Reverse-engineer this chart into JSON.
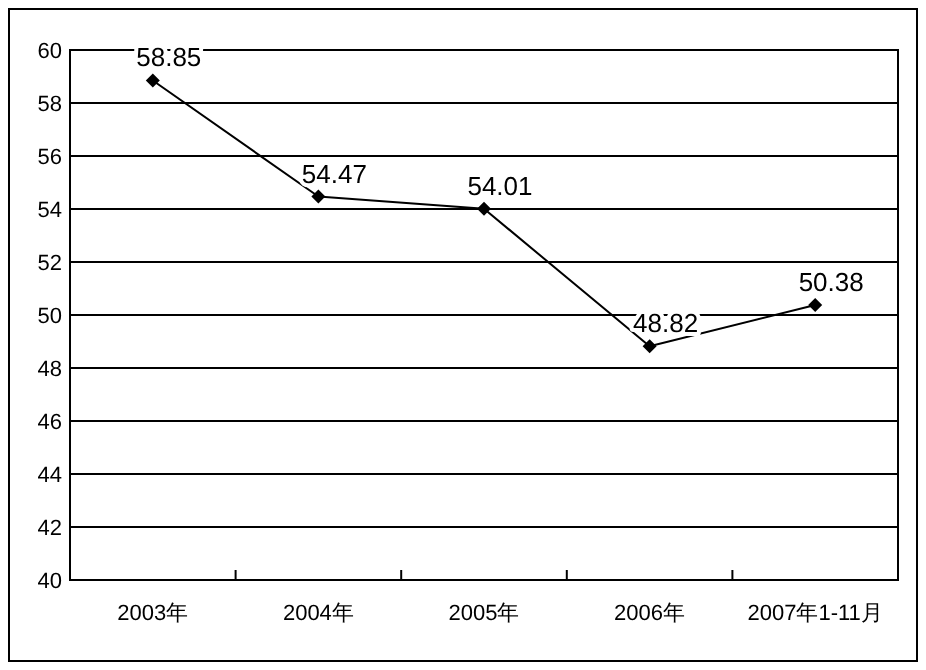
{
  "chart_data": {
    "type": "line",
    "categories": [
      "2003年",
      "2004年",
      "2005年",
      "2006年",
      "2007年1-11月"
    ],
    "series": [
      {
        "color": "#000000",
        "values": [
          58.85,
          54.47,
          54.01,
          48.82,
          50.38
        ]
      }
    ],
    "ylim": [
      40,
      60
    ],
    "yticks": [
      40,
      42,
      44,
      46,
      48,
      50,
      52,
      54,
      56,
      58,
      60
    ],
    "grid": "y",
    "marker": "diamond",
    "line_style": "solid",
    "data_labels": true
  }
}
